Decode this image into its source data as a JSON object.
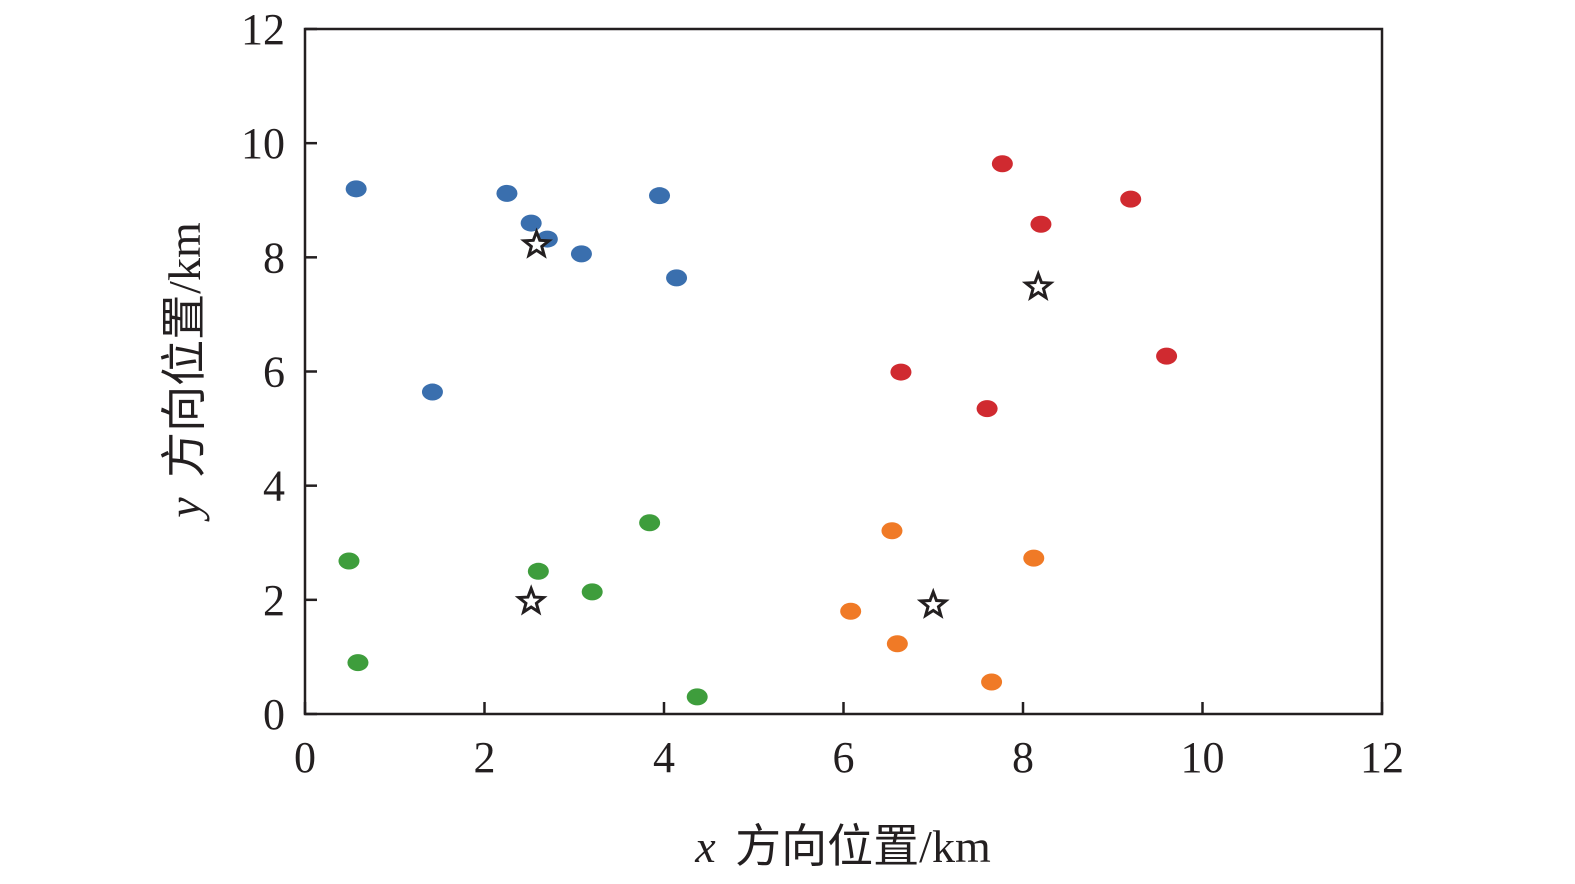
{
  "chart_data": {
    "type": "scatter",
    "title": "",
    "xlabel_var": "x",
    "xlabel_text": "方向位置/km",
    "ylabel_var": "y",
    "ylabel_text": "方向位置/km",
    "xlim": [
      0,
      12
    ],
    "ylim": [
      0,
      12
    ],
    "xticks": [
      0,
      2,
      4,
      6,
      8,
      10,
      12
    ],
    "yticks": [
      0,
      2,
      4,
      6,
      8,
      10,
      12
    ],
    "grid": false,
    "legend": "none",
    "series": [
      {
        "color": "#3a6fae",
        "marker": "ellipse",
        "points": [
          [
            0.57,
            9.2
          ],
          [
            2.25,
            9.12
          ],
          [
            2.52,
            8.6
          ],
          [
            2.7,
            8.32
          ],
          [
            3.08,
            8.06
          ],
          [
            3.95,
            9.08
          ],
          [
            4.14,
            7.64
          ],
          [
            1.42,
            5.64
          ]
        ]
      },
      {
        "color": "#d02a30",
        "marker": "ellipse",
        "points": [
          [
            7.77,
            9.64
          ],
          [
            9.2,
            9.02
          ],
          [
            8.2,
            8.58
          ],
          [
            9.6,
            6.27
          ],
          [
            6.64,
            5.99
          ],
          [
            7.6,
            5.35
          ]
        ]
      },
      {
        "color": "#3e9d3c",
        "marker": "ellipse",
        "points": [
          [
            0.49,
            2.68
          ],
          [
            2.6,
            2.5
          ],
          [
            3.2,
            2.14
          ],
          [
            3.84,
            3.35
          ],
          [
            0.59,
            0.9
          ],
          [
            4.37,
            0.3
          ]
        ]
      },
      {
        "color": "#f07a26",
        "marker": "ellipse",
        "points": [
          [
            6.54,
            3.21
          ],
          [
            8.12,
            2.73
          ],
          [
            6.08,
            1.8
          ],
          [
            6.6,
            1.23
          ],
          [
            7.65,
            0.56
          ]
        ]
      },
      {
        "color": "#231f20",
        "marker": "star",
        "points": [
          [
            2.58,
            8.22
          ],
          [
            8.17,
            7.48
          ],
          [
            2.52,
            1.97
          ],
          [
            7.0,
            1.91
          ]
        ]
      }
    ]
  }
}
